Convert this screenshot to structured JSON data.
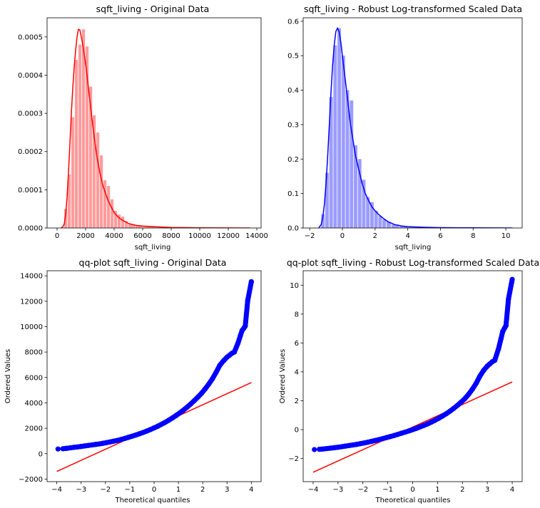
{
  "chart_data": [
    {
      "type": "histogram",
      "title": "sqft_living - Original Data",
      "xlabel": "sqft_living",
      "ylabel": "",
      "xlim": [
        -700,
        14300
      ],
      "ylim": [
        0,
        0.00055
      ],
      "xticks": [
        0,
        2000,
        4000,
        6000,
        8000,
        10000,
        12000,
        14000
      ],
      "yticks": [
        0.0,
        0.0001,
        0.0002,
        0.0003,
        0.0004,
        0.0005
      ],
      "ytick_labels": [
        "0.0000",
        "0.0001",
        "0.0002",
        "0.0003",
        "0.0004",
        "0.0005"
      ],
      "colors": {
        "bar": "#ff9c9c",
        "kde": "#ff0000"
      },
      "bins": {
        "edges": [
          500,
          750,
          1000,
          1250,
          1500,
          1750,
          2000,
          2250,
          2500,
          2750,
          3000,
          3250,
          3500,
          3750,
          4000,
          4250,
          4500,
          4750,
          5000,
          5500,
          6000,
          7000,
          8000,
          10000,
          14000
        ],
        "heights": [
          5e-05,
          0.00014,
          0.00029,
          0.00044,
          0.00048,
          0.00052,
          0.000475,
          0.00037,
          0.000295,
          0.00025,
          0.00019,
          0.000125,
          0.00011,
          7.5e-05,
          4.5e-05,
          3.5e-05,
          3e-05,
          1.8e-05,
          1e-05,
          6e-06,
          3e-06,
          1.5e-06,
          6e-07,
          2e-07
        ]
      },
      "kde": {
        "x": [
          290,
          400,
          500,
          600,
          700,
          800,
          900,
          1000,
          1100,
          1200,
          1300,
          1400,
          1500,
          1600,
          1700,
          1800,
          1900,
          2000,
          2100,
          2200,
          2300,
          2400,
          2600,
          2800,
          3000,
          3200,
          3400,
          3600,
          3800,
          4000,
          4300,
          4600,
          5000,
          5500,
          6000,
          7000,
          8000,
          10000,
          13540
        ],
        "y": [
          0,
          3e-06,
          1e-05,
          3.5e-05,
          8e-05,
          0.000145,
          0.00022,
          0.0003,
          0.000365,
          0.00042,
          0.000465,
          0.0005,
          0.00052,
          0.000518,
          0.0005,
          0.00048,
          0.000455,
          0.00043,
          0.0004,
          0.000365,
          0.000335,
          0.0003,
          0.00024,
          0.000185,
          0.000145,
          0.000112,
          9e-05,
          7e-05,
          5.5e-05,
          4e-05,
          2.8e-05,
          2e-05,
          1.2e-05,
          7e-06,
          5e-06,
          3e-06,
          1.5e-06,
          5e-07,
          0
        ]
      }
    },
    {
      "type": "histogram",
      "title": "sqft_living - Robust Log-transformed Scaled Data",
      "xlabel": "sqft_living",
      "ylabel": "",
      "xlim": [
        -2.4,
        11.0
      ],
      "ylim": [
        0,
        0.61
      ],
      "xticks": [
        -2,
        0,
        2,
        4,
        6,
        8,
        10
      ],
      "yticks": [
        0.0,
        0.1,
        0.2,
        0.3,
        0.4,
        0.5,
        0.6
      ],
      "ytick_labels": [
        "0.0",
        "0.1",
        "0.2",
        "0.3",
        "0.4",
        "0.5",
        "0.6"
      ],
      "colors": {
        "bar": "#9c9cff",
        "kde": "#0000ff"
      },
      "bins": {
        "edges": [
          -1.3,
          -1.05,
          -0.8,
          -0.55,
          -0.3,
          -0.05,
          0.2,
          0.45,
          0.7,
          0.95,
          1.2,
          1.45,
          1.7,
          1.95,
          2.2,
          2.45,
          2.7,
          3.0,
          3.5,
          4.0,
          5.0,
          6.0,
          8.0,
          10.4
        ],
        "heights": [
          0.04,
          0.16,
          0.38,
          0.53,
          0.58,
          0.5,
          0.4,
          0.37,
          0.24,
          0.2,
          0.14,
          0.09,
          0.075,
          0.05,
          0.035,
          0.025,
          0.018,
          0.01,
          0.006,
          0.003,
          0.0015,
          0.0006,
          0.0002
        ]
      },
      "kde": {
        "x": [
          -1.45,
          -1.3,
          -1.2,
          -1.1,
          -1.0,
          -0.9,
          -0.8,
          -0.7,
          -0.6,
          -0.5,
          -0.4,
          -0.3,
          -0.2,
          -0.1,
          0.0,
          0.1,
          0.2,
          0.3,
          0.4,
          0.5,
          0.6,
          0.7,
          0.8,
          1.0,
          1.2,
          1.4,
          1.6,
          1.8,
          2.0,
          2.2,
          2.5,
          2.8,
          3.2,
          3.6,
          4.0,
          5.0,
          6.0,
          8.0,
          10.4
        ],
        "y": [
          0,
          0.01,
          0.03,
          0.07,
          0.13,
          0.21,
          0.3,
          0.39,
          0.47,
          0.53,
          0.57,
          0.58,
          0.57,
          0.54,
          0.5,
          0.46,
          0.42,
          0.38,
          0.34,
          0.3,
          0.27,
          0.24,
          0.21,
          0.17,
          0.13,
          0.1,
          0.08,
          0.062,
          0.05,
          0.04,
          0.028,
          0.018,
          0.01,
          0.006,
          0.004,
          0.002,
          0.001,
          0.0004,
          0
        ]
      }
    },
    {
      "type": "scatter",
      "title": "qq-plot sqft_living - Original Data",
      "xlabel": "Theoretical quantiles",
      "ylabel": "Ordered Values",
      "xlim": [
        -4.4,
        4.4
      ],
      "ylim": [
        -2200,
        14400
      ],
      "xticks": [
        -4,
        -3,
        -2,
        -1,
        0,
        1,
        2,
        3,
        4
      ],
      "yticks": [
        -2000,
        0,
        2000,
        4000,
        6000,
        8000,
        10000,
        12000,
        14000
      ],
      "colors": {
        "points": "#0000ff",
        "line": "#ff0000"
      },
      "points": {
        "x": [
          -3.95,
          -3.75,
          -3.6,
          -3.45,
          -3.3,
          -3.15,
          -3.0,
          -2.85,
          -2.7,
          -2.55,
          -2.4,
          -2.25,
          -2.1,
          -1.95,
          -1.8,
          -1.65,
          -1.5,
          -1.35,
          -1.2,
          -1.05,
          -0.9,
          -0.75,
          -0.6,
          -0.45,
          -0.3,
          -0.15,
          0.0,
          0.15,
          0.3,
          0.45,
          0.6,
          0.75,
          0.9,
          1.05,
          1.2,
          1.35,
          1.5,
          1.65,
          1.8,
          1.95,
          2.1,
          2.25,
          2.4,
          2.55,
          2.7,
          2.85,
          3.0,
          3.1,
          3.2,
          3.3,
          3.45,
          3.55,
          3.62,
          3.7,
          3.75,
          3.85,
          4.0
        ],
        "y": [
          370,
          390,
          420,
          460,
          500,
          530,
          570,
          610,
          650,
          690,
          730,
          770,
          820,
          870,
          930,
          990,
          1050,
          1120,
          1200,
          1290,
          1380,
          1470,
          1570,
          1670,
          1780,
          1900,
          2030,
          2160,
          2310,
          2460,
          2630,
          2810,
          3000,
          3200,
          3420,
          3650,
          3900,
          4170,
          4450,
          4750,
          5100,
          5480,
          5900,
          6400,
          6950,
          7300,
          7600,
          7750,
          7900,
          8000,
          8700,
          9300,
          9700,
          9900,
          10050,
          12050,
          13540
        ]
      },
      "line": {
        "x": [
          -4.0,
          4.0
        ],
        "y": [
          -1400,
          5600
        ]
      }
    },
    {
      "type": "scatter",
      "title": "qq-plot sqft_living - Robust Log-transformed Scaled Data",
      "xlabel": "Theoretical quantiles",
      "ylabel": "Ordered Values",
      "xlim": [
        -4.4,
        4.4
      ],
      "ylim": [
        -3.6,
        11.0
      ],
      "xticks": [
        -4,
        -3,
        -2,
        -1,
        0,
        1,
        2,
        3,
        4
      ],
      "yticks": [
        -2,
        0,
        2,
        4,
        6,
        8,
        10
      ],
      "colors": {
        "points": "#0000ff",
        "line": "#ff0000"
      },
      "points": {
        "x": [
          -3.95,
          -3.75,
          -3.6,
          -3.45,
          -3.3,
          -3.15,
          -3.0,
          -2.85,
          -2.7,
          -2.55,
          -2.4,
          -2.25,
          -2.1,
          -1.95,
          -1.8,
          -1.65,
          -1.5,
          -1.35,
          -1.2,
          -1.05,
          -0.9,
          -0.75,
          -0.6,
          -0.45,
          -0.3,
          -0.15,
          0.0,
          0.15,
          0.3,
          0.45,
          0.6,
          0.75,
          0.9,
          1.05,
          1.2,
          1.35,
          1.5,
          1.65,
          1.8,
          1.95,
          2.1,
          2.25,
          2.4,
          2.55,
          2.7,
          2.85,
          3.0,
          3.1,
          3.2,
          3.3,
          3.45,
          3.55,
          3.62,
          3.7,
          3.75,
          3.85,
          4.0
        ],
        "y": [
          -1.38,
          -1.36,
          -1.34,
          -1.31,
          -1.28,
          -1.25,
          -1.22,
          -1.18,
          -1.14,
          -1.1,
          -1.06,
          -1.02,
          -0.97,
          -0.92,
          -0.87,
          -0.81,
          -0.75,
          -0.69,
          -0.62,
          -0.55,
          -0.48,
          -0.41,
          -0.33,
          -0.25,
          -0.17,
          -0.09,
          0.0,
          0.09,
          0.19,
          0.29,
          0.4,
          0.52,
          0.65,
          0.79,
          0.94,
          1.1,
          1.28,
          1.47,
          1.68,
          1.91,
          2.15,
          2.45,
          2.8,
          3.2,
          3.7,
          4.1,
          4.4,
          4.55,
          4.7,
          4.8,
          5.6,
          6.3,
          6.8,
          7.05,
          7.2,
          9.05,
          10.4
        ]
      },
      "line": {
        "x": [
          -4.0,
          4.0
        ],
        "y": [
          -2.95,
          3.3
        ]
      }
    }
  ]
}
